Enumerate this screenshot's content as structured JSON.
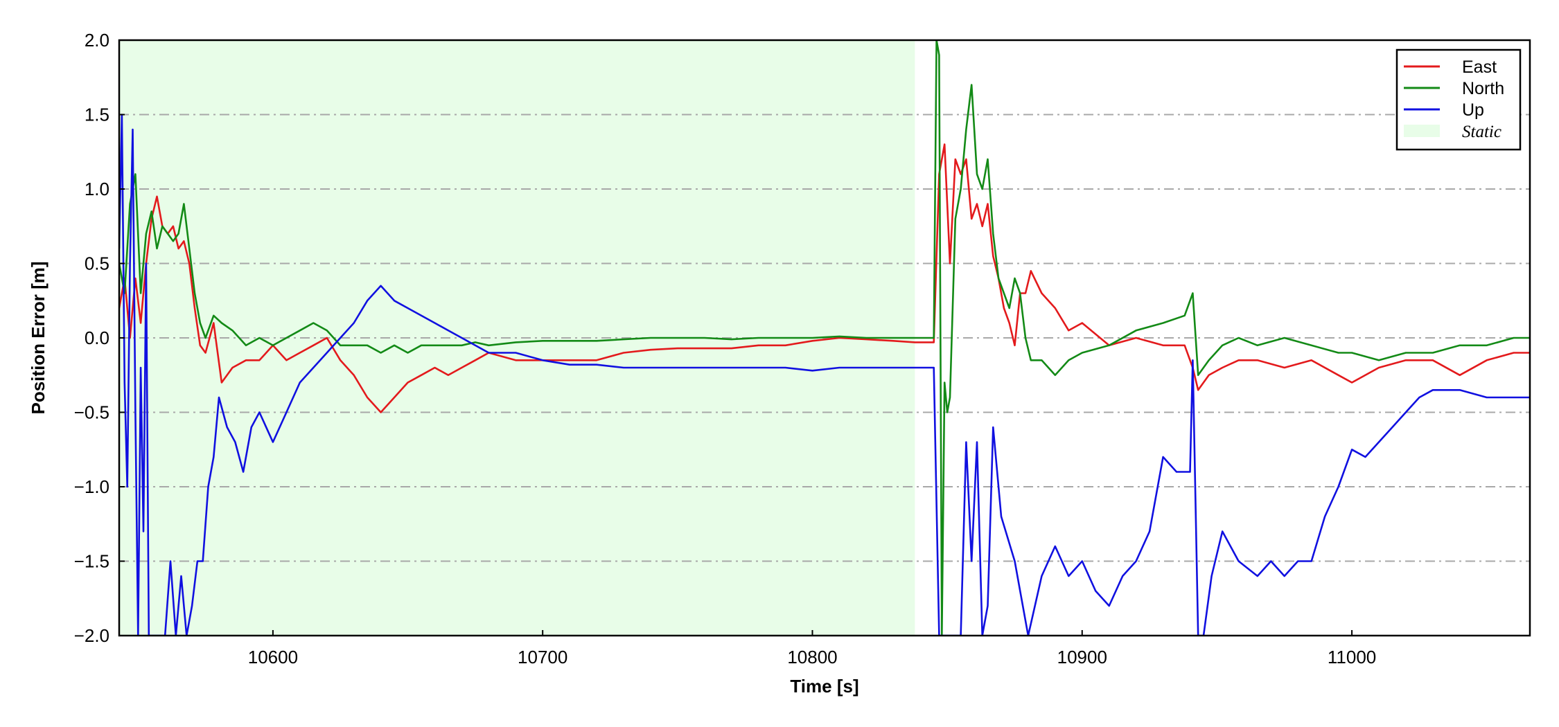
{
  "chart_data": {
    "type": "line",
    "xlabel": "Time [s]",
    "ylabel": "Position Error [m]",
    "xlim": [
      10543,
      11066
    ],
    "ylim": [
      -2.0,
      2.0
    ],
    "xticks": [
      10600,
      10700,
      10800,
      10900,
      11000
    ],
    "xtick_labels": [
      "10600",
      "10700",
      "10800",
      "10900",
      "11000"
    ],
    "yticks": [
      2.0,
      1.5,
      1.0,
      0.5,
      0.0,
      -0.5,
      -1.0,
      -1.5,
      -2.0
    ],
    "ytick_labels": [
      "2.0",
      "1.5",
      "1.0",
      "0.5",
      "0.0",
      "−0.5",
      "−1.0",
      "−1.5",
      "−2.0"
    ],
    "grid": "horizontal dash-dot",
    "legend_position": "top-right",
    "shaded_regions": [
      {
        "name": "Static",
        "x_start": 10543,
        "x_end": 10838,
        "color": "#e8fde8"
      }
    ],
    "series": [
      {
        "name": "East",
        "color": "#e31a1c",
        "x": [
          10543,
          10545,
          10547,
          10549,
          10551,
          10553,
          10555,
          10557,
          10559,
          10561,
          10563,
          10565,
          10567,
          10569,
          10571,
          10573,
          10575,
          10578,
          10581,
          10585,
          10590,
          10595,
          10600,
          10605,
          10610,
          10615,
          10620,
          10625,
          10630,
          10635,
          10640,
          10645,
          10650,
          10655,
          10660,
          10665,
          10670,
          10675,
          10680,
          10690,
          10700,
          10710,
          10720,
          10730,
          10740,
          10750,
          10760,
          10770,
          10780,
          10790,
          10800,
          10810,
          10820,
          10830,
          10838,
          10845,
          10847,
          10849,
          10851,
          10853,
          10855,
          10857,
          10859,
          10861,
          10863,
          10865,
          10867,
          10869,
          10871,
          10873,
          10875,
          10877,
          10879,
          10881,
          10885,
          10890,
          10895,
          10900,
          10910,
          10920,
          10930,
          10938,
          10941,
          10943,
          10947,
          10952,
          10958,
          10965,
          10975,
          10985,
          10995,
          11000,
          11010,
          11020,
          11030,
          11040,
          11050,
          11060,
          11066
        ],
        "y": [
          0.2,
          0.4,
          0.0,
          0.4,
          0.1,
          0.5,
          0.8,
          0.95,
          0.75,
          0.7,
          0.75,
          0.6,
          0.65,
          0.5,
          0.2,
          -0.05,
          -0.1,
          0.1,
          -0.3,
          -0.2,
          -0.15,
          -0.15,
          -0.05,
          -0.15,
          -0.1,
          -0.05,
          0.0,
          -0.15,
          -0.25,
          -0.4,
          -0.5,
          -0.4,
          -0.3,
          -0.25,
          -0.2,
          -0.25,
          -0.2,
          -0.15,
          -0.1,
          -0.15,
          -0.15,
          -0.15,
          -0.15,
          -0.1,
          -0.08,
          -0.07,
          -0.07,
          -0.07,
          -0.05,
          -0.05,
          -0.02,
          0.0,
          -0.01,
          -0.02,
          -0.03,
          -0.03,
          1.1,
          1.3,
          0.5,
          1.2,
          1.1,
          1.2,
          0.8,
          0.9,
          0.75,
          0.9,
          0.55,
          0.4,
          0.2,
          0.1,
          -0.05,
          0.3,
          0.3,
          0.45,
          0.3,
          0.2,
          0.05,
          0.1,
          -0.05,
          0.0,
          -0.05,
          -0.05,
          -0.2,
          -0.35,
          -0.25,
          -0.2,
          -0.15,
          -0.15,
          -0.2,
          -0.15,
          -0.25,
          -0.3,
          -0.2,
          -0.15,
          -0.15,
          -0.25,
          -0.15,
          -0.1,
          -0.1
        ]
      },
      {
        "name": "North",
        "color": "#138a16",
        "x": [
          10543,
          10545,
          10547,
          10549,
          10551,
          10553,
          10555,
          10557,
          10559,
          10561,
          10563,
          10565,
          10567,
          10569,
          10571,
          10573,
          10575,
          10578,
          10581,
          10585,
          10590,
          10595,
          10600,
          10605,
          10610,
          10615,
          10620,
          10625,
          10630,
          10635,
          10640,
          10645,
          10650,
          10655,
          10660,
          10665,
          10670,
          10675,
          10680,
          10690,
          10700,
          10710,
          10720,
          10730,
          10740,
          10750,
          10760,
          10770,
          10780,
          10790,
          10800,
          10810,
          10820,
          10830,
          10838,
          10845,
          10846,
          10847,
          10848,
          10849,
          10850,
          10851,
          10853,
          10855,
          10857,
          10859,
          10861,
          10863,
          10865,
          10867,
          10869,
          10871,
          10873,
          10875,
          10877,
          10879,
          10881,
          10885,
          10890,
          10895,
          10900,
          10910,
          10920,
          10930,
          10938,
          10941,
          10943,
          10947,
          10952,
          10958,
          10965,
          10975,
          10985,
          10995,
          11000,
          11010,
          11020,
          11030,
          11040,
          11050,
          11060,
          11066
        ],
        "y": [
          0.5,
          0.3,
          0.9,
          1.1,
          0.3,
          0.7,
          0.85,
          0.6,
          0.75,
          0.7,
          0.65,
          0.7,
          0.9,
          0.6,
          0.3,
          0.1,
          0.0,
          0.15,
          0.1,
          0.05,
          -0.05,
          0.0,
          -0.05,
          0.0,
          0.05,
          0.1,
          0.05,
          -0.05,
          -0.05,
          -0.05,
          -0.1,
          -0.05,
          -0.1,
          -0.05,
          -0.05,
          -0.05,
          -0.05,
          -0.03,
          -0.05,
          -0.03,
          -0.02,
          -0.02,
          -0.02,
          -0.01,
          0.0,
          0.0,
          0.0,
          -0.01,
          0.0,
          0.0,
          0.0,
          0.01,
          0.0,
          0.0,
          0.0,
          0.0,
          2.0,
          1.9,
          -2.0,
          -0.3,
          -0.5,
          -0.4,
          0.8,
          1.0,
          1.4,
          1.7,
          1.1,
          1.0,
          1.2,
          0.7,
          0.4,
          0.3,
          0.2,
          0.4,
          0.3,
          0.0,
          -0.15,
          -0.15,
          -0.25,
          -0.15,
          -0.1,
          -0.05,
          0.05,
          0.1,
          0.15,
          0.3,
          -0.25,
          -0.15,
          -0.05,
          0.0,
          -0.05,
          0.0,
          -0.05,
          -0.1,
          -0.1,
          -0.15,
          -0.1,
          -0.1,
          -0.05,
          -0.05,
          0.0,
          0.0
        ]
      },
      {
        "name": "Up",
        "color": "#1010e0",
        "x": [
          10543,
          10544,
          10545,
          10546,
          10547,
          10548,
          10549,
          10550,
          10551,
          10552,
          10553,
          10554,
          10556,
          10558,
          10560,
          10562,
          10564,
          10566,
          10568,
          10570,
          10572,
          10574,
          10576,
          10578,
          10580,
          10583,
          10586,
          10589,
          10592,
          10595,
          10600,
          10605,
          10610,
          10615,
          10620,
          10625,
          10630,
          10635,
          10640,
          10645,
          10650,
          10655,
          10660,
          10665,
          10670,
          10675,
          10680,
          10690,
          10700,
          10710,
          10720,
          10730,
          10740,
          10750,
          10760,
          10770,
          10780,
          10790,
          10800,
          10810,
          10820,
          10830,
          10838,
          10845,
          10847,
          10849,
          10851,
          10853,
          10855,
          10857,
          10859,
          10861,
          10863,
          10865,
          10867,
          10870,
          10875,
          10880,
          10885,
          10890,
          10895,
          10900,
          10905,
          10910,
          10915,
          10920,
          10925,
          10930,
          10935,
          10940,
          10941,
          10943,
          10945,
          10948,
          10952,
          10958,
          10965,
          10970,
          10975,
          10980,
          10985,
          10990,
          10995,
          11000,
          11005,
          11010,
          11015,
          11020,
          11025,
          11030,
          11040,
          11050,
          11060,
          11066
        ],
        "y": [
          0.6,
          1.5,
          -0.3,
          -1.0,
          0.5,
          1.4,
          -0.5,
          -2.0,
          -0.2,
          -1.3,
          0.5,
          -2.0,
          -2.0,
          -2.0,
          -2.0,
          -1.5,
          -2.0,
          -1.6,
          -2.0,
          -1.8,
          -1.5,
          -1.5,
          -1.0,
          -0.8,
          -0.4,
          -0.6,
          -0.7,
          -0.9,
          -0.6,
          -0.5,
          -0.7,
          -0.5,
          -0.3,
          -0.2,
          -0.1,
          0.0,
          0.1,
          0.25,
          0.35,
          0.25,
          0.2,
          0.15,
          0.1,
          0.05,
          0.0,
          -0.05,
          -0.1,
          -0.1,
          -0.15,
          -0.18,
          -0.18,
          -0.2,
          -0.2,
          -0.2,
          -0.2,
          -0.2,
          -0.2,
          -0.2,
          -0.22,
          -0.2,
          -0.2,
          -0.2,
          -0.2,
          -0.2,
          -2.0,
          -2.0,
          -2.0,
          -2.0,
          -2.0,
          -0.7,
          -1.5,
          -0.7,
          -2.0,
          -1.8,
          -0.6,
          -1.2,
          -1.5,
          -2.0,
          -1.6,
          -1.4,
          -1.6,
          -1.5,
          -1.7,
          -1.8,
          -1.6,
          -1.5,
          -1.3,
          -0.8,
          -0.9,
          -0.9,
          -0.15,
          -2.0,
          -2.0,
          -1.6,
          -1.3,
          -1.5,
          -1.6,
          -1.5,
          -1.6,
          -1.5,
          -1.5,
          -1.2,
          -1.0,
          -0.75,
          -0.8,
          -0.7,
          -0.6,
          -0.5,
          -0.4,
          -0.35,
          -0.35,
          -0.4,
          -0.4,
          -0.4
        ]
      }
    ]
  }
}
